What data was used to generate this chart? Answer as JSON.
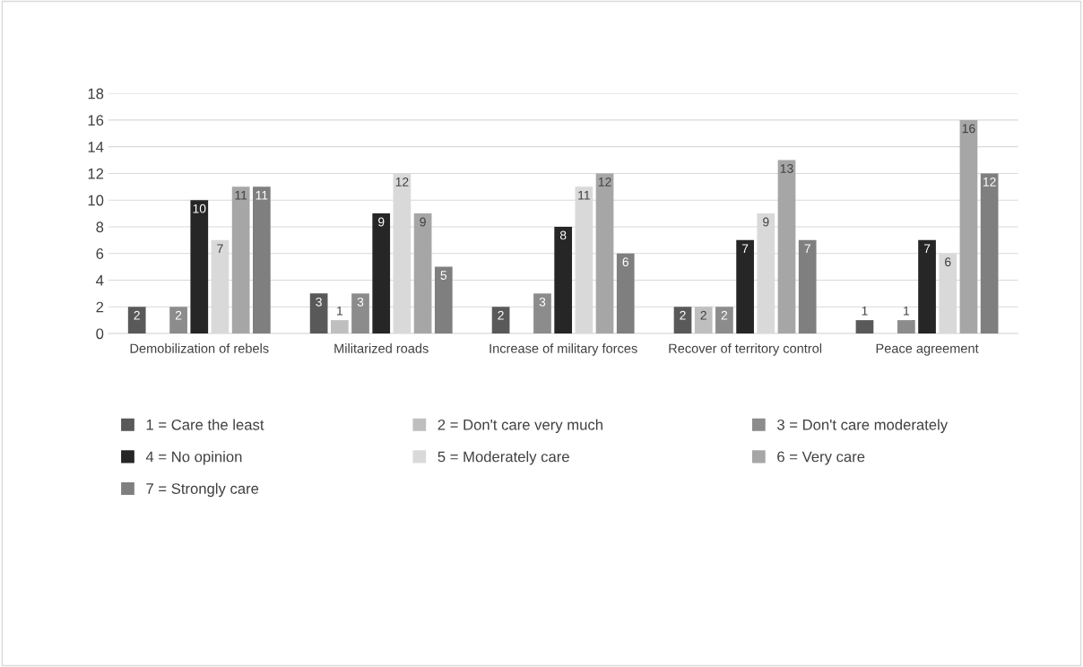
{
  "chart_data": {
    "type": "bar",
    "categories": [
      "Demobilization of rebels",
      "Militarized roads",
      "Increase of military forces",
      "Recover of territory control",
      "Peace agreement"
    ],
    "series": [
      {
        "name": "1 = Care the least",
        "color": "#595959",
        "values": [
          2,
          3,
          2,
          2,
          1
        ]
      },
      {
        "name": "2 = Don't care very much",
        "color": "#bfbfbf",
        "values": [
          null,
          1,
          null,
          2,
          null
        ]
      },
      {
        "name": "3 = Don't care moderately",
        "color": "#8c8c8c",
        "values": [
          2,
          3,
          3,
          2,
          1
        ]
      },
      {
        "name": "4 = No opinion",
        "color": "#262626",
        "values": [
          10,
          9,
          8,
          7,
          7
        ]
      },
      {
        "name": "5 = Moderately care",
        "color": "#d9d9d9",
        "values": [
          7,
          12,
          11,
          9,
          6
        ]
      },
      {
        "name": "6 = Very care",
        "color": "#a6a6a6",
        "values": [
          11,
          9,
          12,
          13,
          16
        ]
      },
      {
        "name": "7 = Strongly care",
        "color": "#7f7f7f",
        "values": [
          11,
          5,
          6,
          7,
          12
        ]
      }
    ],
    "ylim": [
      0,
      18
    ],
    "yticks": [
      0,
      2,
      4,
      6,
      8,
      10,
      12,
      14,
      16,
      18
    ],
    "grid": "y",
    "legend": "bottom",
    "data_labels": true
  }
}
